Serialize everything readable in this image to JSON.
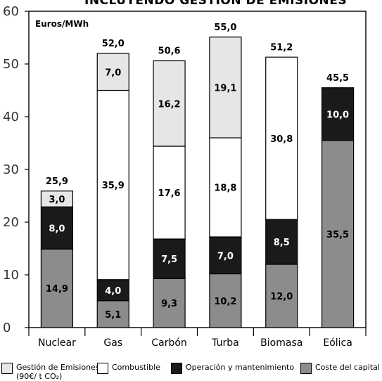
{
  "chart_data": {
    "type": "bar",
    "stacked": true,
    "title": "INCLUYENDO GESTIÓN DE EMISIONES",
    "unit_label": "Euros/MWh",
    "ylim": [
      0,
      60
    ],
    "yticks": [
      0,
      10,
      20,
      30,
      40,
      50,
      60
    ],
    "categories": [
      "Nuclear",
      "Gas",
      "Carbón",
      "Turba",
      "Biomasa",
      "Eólica"
    ],
    "totals": [
      "25,9",
      "52,0",
      "50,6",
      "55,0",
      "51,2",
      "45,5"
    ],
    "series": [
      {
        "name": "Coste del capital",
        "color": "#8c8c8c",
        "label_color": "#000000",
        "values": [
          14.9,
          5.1,
          9.3,
          10.2,
          12.0,
          35.5
        ],
        "labels": [
          "14,9",
          "5,1",
          "9,3",
          "10,2",
          "12,0",
          "35,5"
        ]
      },
      {
        "name": "Operación y mantenimiento",
        "color": "#1a1a1a",
        "label_color": "#ffffff",
        "values": [
          8.0,
          4.0,
          7.5,
          7.0,
          8.5,
          10.0
        ],
        "labels": [
          "8,0",
          "4,0",
          "7,5",
          "7,0",
          "8,5",
          "10,0"
        ]
      },
      {
        "name": "Combustible",
        "color": "#ffffff",
        "label_color": "#000000",
        "values": [
          0,
          35.9,
          17.6,
          18.8,
          30.8,
          0
        ],
        "labels": [
          "",
          "35,9",
          "17,6",
          "18,8",
          "30,8",
          ""
        ]
      },
      {
        "name": "Gestión de Emisiones (90€/ t CO₂)",
        "color": "#e6e6e6",
        "label_color": "#000000",
        "values": [
          3.0,
          7.0,
          16.2,
          19.1,
          0,
          0
        ],
        "labels": [
          "3,0",
          "7,0",
          "16,2",
          "19,1",
          "",
          ""
        ]
      }
    ],
    "legend_position": "bottom"
  },
  "legend": {
    "items": [
      {
        "label_line1": "Gestión de Emisiones",
        "label_line2": "(90€/ t CO₂)",
        "color": "#e6e6e6"
      },
      {
        "label_line1": "Combustible",
        "label_line2": "",
        "color": "#ffffff"
      },
      {
        "label_line1": "Operación y mantenimiento",
        "label_line2": "",
        "color": "#1a1a1a"
      },
      {
        "label_line1": "Coste del capital",
        "label_line2": "",
        "color": "#8c8c8c"
      }
    ]
  }
}
